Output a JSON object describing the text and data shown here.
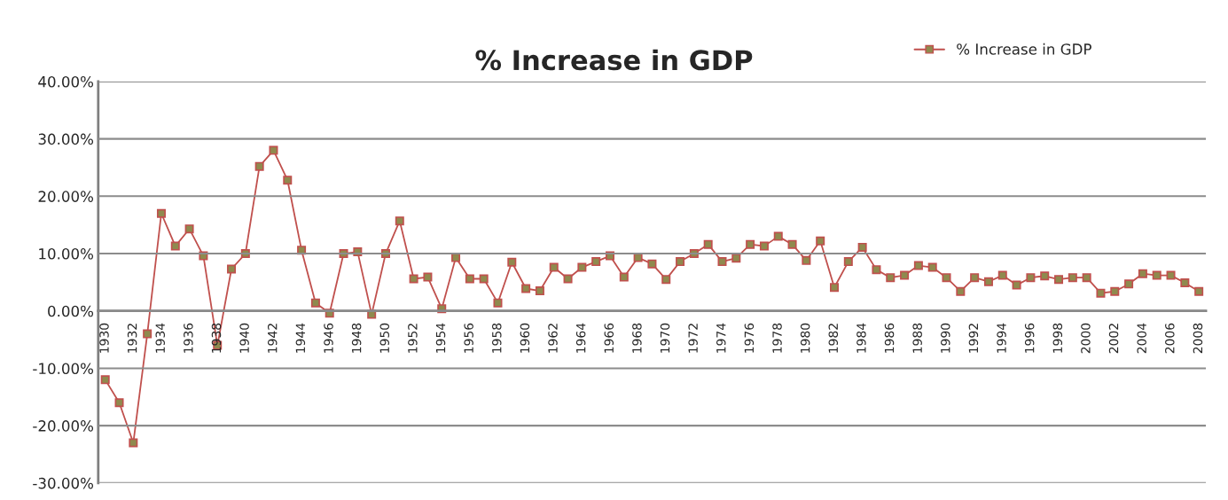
{
  "chart_data": {
    "type": "line",
    "title": "% Increase in GDP",
    "categories": [
      "1930",
      null,
      "1932",
      null,
      "1934",
      null,
      "1936",
      null,
      "1938",
      null,
      "1940",
      null,
      "1942",
      null,
      "1944",
      null,
      "1946",
      null,
      "1948",
      null,
      "1950",
      null,
      "1952",
      null,
      "1954",
      null,
      "1956",
      null,
      "1958",
      null,
      "1960",
      null,
      "1962",
      null,
      "1964",
      null,
      "1966",
      null,
      "1968",
      null,
      "1970",
      null,
      "1972",
      null,
      "1974",
      null,
      "1976",
      null,
      "1978",
      null,
      "1980",
      null,
      "1982",
      null,
      "1984",
      null,
      "1986",
      null,
      "1988",
      null,
      "1990",
      null,
      "1992",
      null,
      "1994",
      null,
      "1996",
      null,
      "1998",
      null,
      "2000",
      null,
      "2002",
      null,
      "2004",
      null,
      "2006",
      null,
      "2008"
    ],
    "series": [
      {
        "name": "% Increase in GDP",
        "color": "#c0504d",
        "values": [
          -12,
          -16,
          -23,
          -4,
          17,
          11.3,
          14.3,
          9.6,
          -6,
          7.3,
          10,
          25.2,
          28,
          22.8,
          10.6,
          1.4,
          -0.4,
          10,
          10.3,
          -0.6,
          10,
          15.7,
          5.6,
          5.9,
          0.4,
          9.3,
          5.6,
          5.6,
          1.4,
          8.5,
          3.9,
          3.5,
          7.6,
          5.6,
          7.6,
          8.6,
          9.6,
          5.9,
          9.3,
          8.2,
          5.5,
          8.6,
          10,
          11.6,
          8.6,
          9.2,
          11.6,
          11.3,
          13,
          11.6,
          8.8,
          12.2,
          4.1,
          8.6,
          11.1,
          7.2,
          5.8,
          6.2,
          7.9,
          7.6,
          5.8,
          3.4,
          5.8,
          5.1,
          6.2,
          4.5,
          5.8,
          6.1,
          5.5,
          5.8,
          5.8,
          3.1,
          3.4,
          4.7,
          6.5,
          6.2,
          6.2,
          4.9,
          3.4
        ]
      }
    ],
    "ylim": [
      -30,
      40
    ],
    "yticks": [
      {
        "value": -30,
        "label": "-30.00%"
      },
      {
        "value": -20,
        "label": "-20.00%"
      },
      {
        "value": -10,
        "label": "-10.00%"
      },
      {
        "value": 0,
        "label": "0.00%"
      },
      {
        "value": 10,
        "label": "10.00%"
      },
      {
        "value": 20,
        "label": "20.00%"
      },
      {
        "value": 30,
        "label": "30.00%"
      },
      {
        "value": 40,
        "label": "40.00%"
      }
    ],
    "grid": "y",
    "legend": "top right",
    "marker": "square"
  }
}
